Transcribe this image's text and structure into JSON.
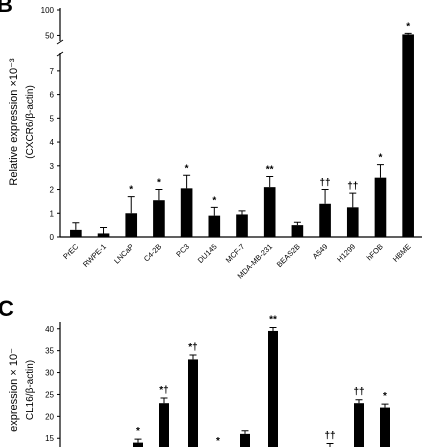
{
  "panels": {
    "b_letter": "B",
    "c_letter": "C"
  },
  "chart_data": [
    {
      "type": "bar",
      "panel": "B",
      "ylabel": "Relative expression ×10⁻³",
      "ylabel2": "(CXCR6/β-actin)",
      "categories": [
        "PrEC",
        "RWPE-1",
        "LNCaP",
        "C4-2B",
        "PC3",
        "DU145",
        "MCF-7",
        "MDA-MB-231",
        "BEAS2B",
        "A549",
        "H1299",
        "hFOB",
        "HBME"
      ],
      "values": [
        0.3,
        0.15,
        1.0,
        1.55,
        2.05,
        0.9,
        0.95,
        2.1,
        0.5,
        1.4,
        1.25,
        2.5,
        52
      ],
      "errors": [
        0.3,
        0.25,
        0.7,
        0.45,
        0.55,
        0.35,
        0.15,
        0.45,
        0.12,
        0.6,
        0.6,
        0.55,
        2
      ],
      "annotations": [
        "",
        "",
        "*",
        "*",
        "*",
        "*",
        "",
        "**",
        "",
        "††",
        "††",
        "*",
        "*"
      ],
      "y_ticks_lower": [
        "0",
        "1",
        "2",
        "3",
        "4",
        "5",
        "6",
        "7"
      ],
      "y_ticks_upper": [
        "50",
        "100"
      ],
      "ylim_lower": [
        0,
        7.5
      ],
      "ylim_upper": [
        45,
        100
      ],
      "axis_break": true,
      "legend": "none",
      "grid": false,
      "bar_color": "#000000"
    },
    {
      "type": "bar",
      "panel": "C",
      "ylabel": "expression × 10⁻",
      "ylabel2": "CL16/β-actin)",
      "values": [
        14,
        23,
        33,
        12,
        16,
        39.5,
        13,
        23,
        22
      ],
      "errors": [
        0.8,
        1.2,
        1.0,
        0.6,
        0.7,
        0.8,
        0.8,
        0.8,
        0.8
      ],
      "annotations": [
        "*",
        "*†",
        "*†",
        "*",
        "",
        "**",
        "††",
        "††",
        "*"
      ],
      "y_ticks": [
        "15",
        "20",
        "25",
        "30",
        "35",
        "40"
      ],
      "ylim": [
        13,
        42
      ],
      "legend": "none",
      "grid": false,
      "bar_color": "#000000"
    }
  ]
}
